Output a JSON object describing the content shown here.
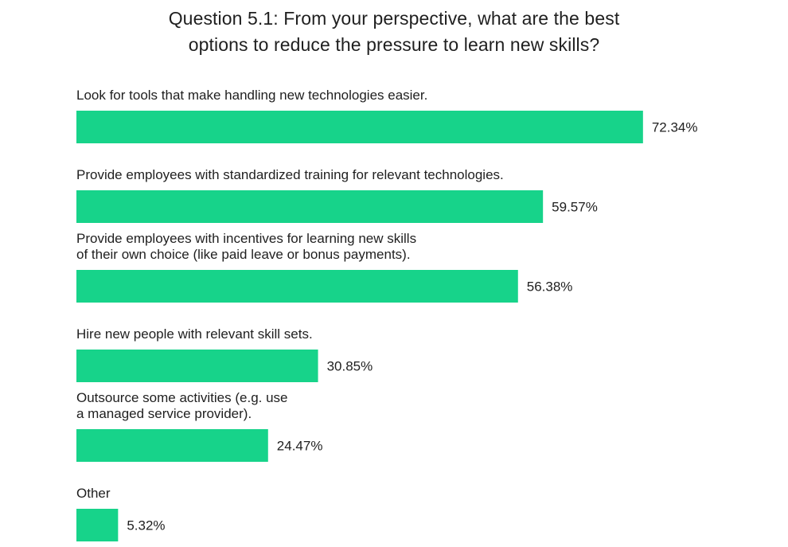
{
  "chart_data": {
    "type": "bar",
    "orientation": "horizontal",
    "title_lines": [
      "Question 5.1: From your perspective, what are the best",
      "options to reduce the pressure to learn new skills?"
    ],
    "categories": [
      [
        "Look for tools that make handling new technologies easier."
      ],
      [
        "Provide employees with standardized training for relevant technologies."
      ],
      [
        "Provide employees with incentives for learning new skills",
        "of their own choice (like paid leave or bonus payments)."
      ],
      [
        "Hire new people with relevant skill sets."
      ],
      [
        "Outsource some activities (e.g. use",
        "a managed service provider)."
      ],
      [
        "Other"
      ]
    ],
    "values": [
      72.34,
      59.57,
      56.38,
      30.85,
      24.47,
      5.32
    ],
    "value_labels": [
      "72.34%",
      "59.57%",
      "56.38%",
      "30.85%",
      "24.47%",
      "5.32%"
    ],
    "xlim": [
      0,
      100
    ],
    "bar_color": "#17d38a",
    "grid": false,
    "legend": "none"
  }
}
